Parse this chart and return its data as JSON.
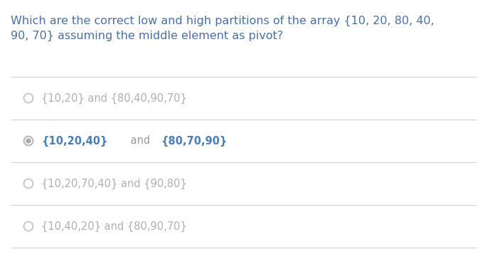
{
  "question_line1": "Which are the correct low and high partitions of the array {10, 20, 80, 40,",
  "question_line2": "90, 70} assuming the middle element as pivot?",
  "options": [
    {
      "id": 1,
      "text": "{10,20} and {80,40,90,70}",
      "selected": false,
      "segments": [
        {
          "text": "{10,20} and {80,40,90,70}",
          "bold": false,
          "colored": false
        }
      ]
    },
    {
      "id": 2,
      "text": "{10,20,40} and {80,70,90}",
      "selected": true,
      "segments": [
        {
          "text": "{10,20,40}",
          "bold": true,
          "colored": true
        },
        {
          "text": " and ",
          "bold": false,
          "colored": false
        },
        {
          "text": "{80,70,90}",
          "bold": true,
          "colored": true
        }
      ]
    },
    {
      "id": 3,
      "text": "{10,20,70,40} and {90,80}",
      "selected": false,
      "segments": [
        {
          "text": "{10,20,70,40} and {90,80}",
          "bold": false,
          "colored": false
        }
      ]
    },
    {
      "id": 4,
      "text": "{10,40,20} and {80,90,70}",
      "selected": false,
      "segments": [
        {
          "text": "{10,40,20} and {80,90,70}",
          "bold": false,
          "colored": false
        }
      ]
    }
  ],
  "bg_color": "#ffffff",
  "question_color": "#4a6fa5",
  "option_unselected_color": "#b0b0b0",
  "correct_bold_color": "#4a7fb5",
  "correct_and_color": "#999999",
  "divider_color": "#d0d0d0",
  "radio_empty_edge": "#c0c0c0",
  "radio_selected_outer_edge": "#b0b0b0",
  "radio_selected_inner": "#aaaaaa",
  "question_fontsize": 11.5,
  "option_fontsize": 10.5
}
